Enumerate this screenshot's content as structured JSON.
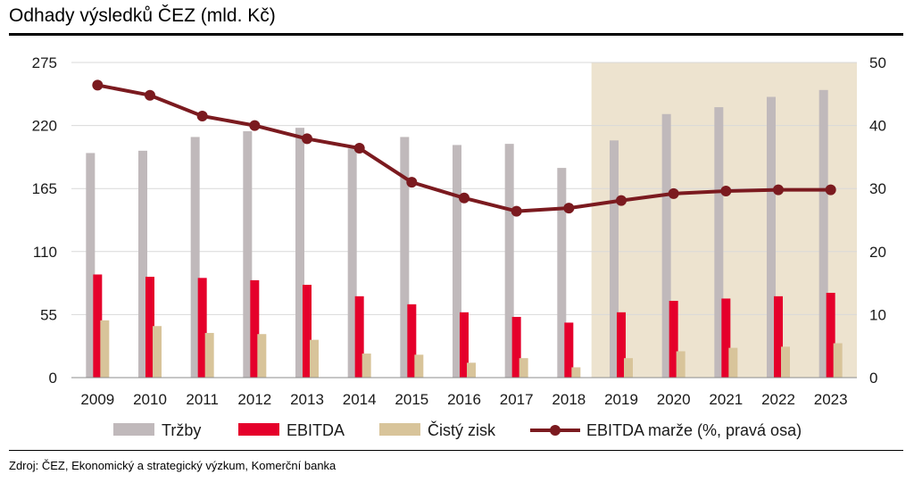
{
  "title": "Odhady výsledků ČEZ (mld. Kč)",
  "source": "Zdroj: ČEZ, Ekonomický a strategický výzkum, Komerční banka",
  "colors": {
    "trzby": "#c0b9bb",
    "ebitda": "#e5002b",
    "zisk": "#d8c49a",
    "marze": "#7b1a1f",
    "forecast_bg": "#ede3cf",
    "grid": "#d9d9d9"
  },
  "chart_data": {
    "type": "bar",
    "categories": [
      "2009",
      "2010",
      "2011",
      "2012",
      "2013",
      "2014",
      "2015",
      "2016",
      "2017",
      "2018",
      "2019",
      "2020",
      "2021",
      "2022",
      "2023"
    ],
    "series": [
      {
        "name": "Tržby",
        "kind": "bar",
        "axis": "left",
        "values": [
          196,
          198,
          210,
          215,
          218,
          200,
          210,
          203,
          204,
          183,
          207,
          230,
          236,
          245,
          251
        ]
      },
      {
        "name": "EBITDA",
        "kind": "bar",
        "axis": "left",
        "values": [
          90,
          88,
          87,
          85,
          81,
          71,
          64,
          57,
          53,
          48,
          57,
          67,
          69,
          71,
          74
        ]
      },
      {
        "name": "Čistý zisk",
        "kind": "bar",
        "axis": "left",
        "values": [
          50,
          45,
          39,
          38,
          33,
          21,
          20,
          13,
          17,
          9,
          17,
          23,
          26,
          27,
          30
        ]
      },
      {
        "name": "EBITDA marže (%, pravá osa)",
        "kind": "line",
        "axis": "right",
        "values": [
          46.4,
          44.8,
          41.5,
          40.0,
          37.9,
          36.4,
          31.0,
          28.5,
          26.4,
          26.9,
          28.1,
          29.2,
          29.6,
          29.8,
          29.8
        ]
      }
    ],
    "y_left": {
      "ticks": [
        0,
        55,
        110,
        165,
        220,
        275
      ],
      "range": [
        0,
        275
      ]
    },
    "y_right": {
      "ticks": [
        0,
        10,
        20,
        30,
        40,
        50
      ],
      "range": [
        0,
        50
      ]
    },
    "forecast_from": "2019",
    "grid": true,
    "legend_position": "bottom"
  }
}
